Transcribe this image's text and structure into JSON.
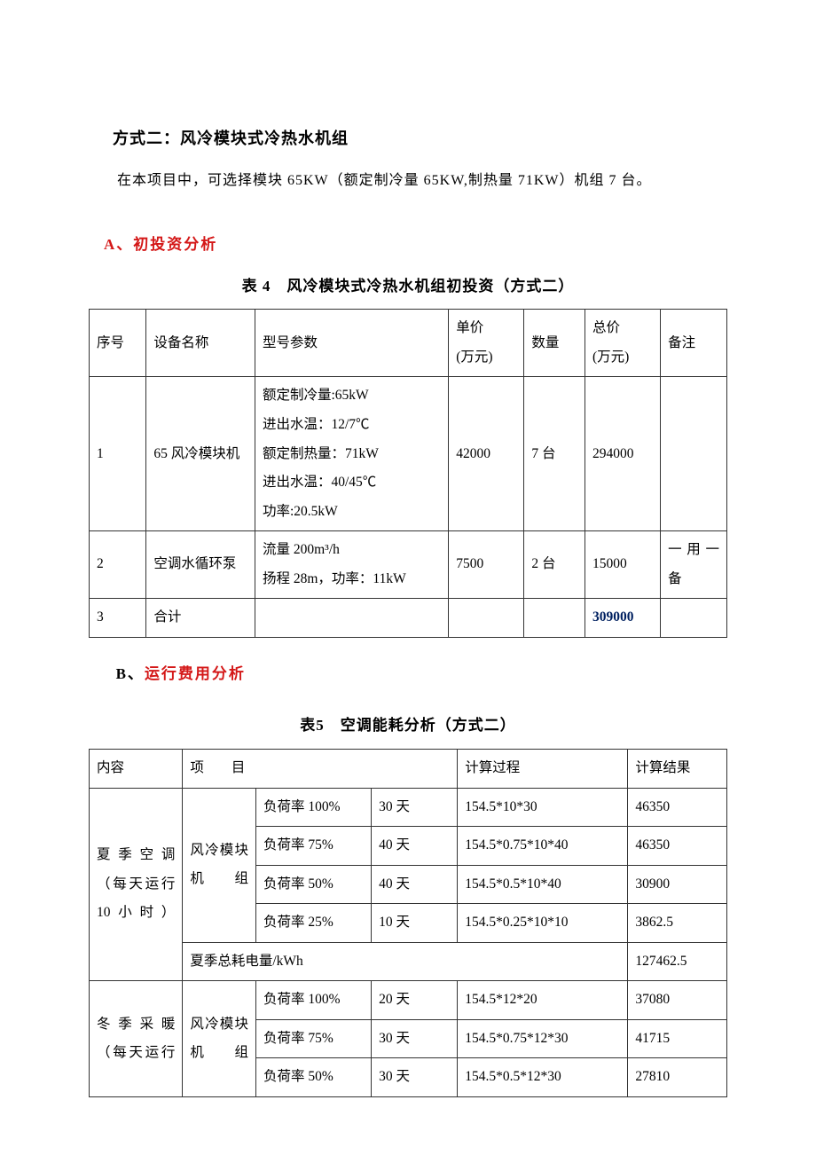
{
  "heading": "方式二：风冷模块式冷热水机组",
  "intro": "在本项目中，可选择模块 65KW（额定制冷量 65KW,制热量 71KW）机组 7 台。",
  "sectionA": {
    "letter": "A、",
    "label": "初投资分析"
  },
  "sectionB": {
    "letter": "B、",
    "label": "运行费用分析"
  },
  "table4": {
    "title": "表 4 风冷模块式冷热水机组初投资（方式二）",
    "headers": {
      "seq": "序号",
      "name": "设备名称",
      "model": "型号参数",
      "price": "单价\n(万元)",
      "qty": "数量",
      "total": "总价\n(万元)",
      "remark": "备注"
    },
    "rows": [
      {
        "seq": "1",
        "name": "65 风冷模块机",
        "model": "额定制冷量:65kW\n进出水温：12/7℃\n额定制热量：71kW\n进出水温：40/45℃\n功率:20.5kW",
        "price": "42000",
        "qty": "7 台",
        "total": "294000",
        "remark": ""
      },
      {
        "seq": "2",
        "name": "空调水循环泵",
        "model": "流量 200m³/h\n扬程 28m，功率：11kW",
        "price": "7500",
        "qty": "2 台",
        "total": "15000",
        "remark": "一用一备"
      },
      {
        "seq": "3",
        "name": "合计",
        "model": "",
        "price": "",
        "qty": "",
        "total": "309000",
        "remark": ""
      }
    ]
  },
  "table5": {
    "title": "表5 空调能耗分析（方式二）",
    "headers": {
      "content": "内容",
      "item": "项  目",
      "process": "计算过程",
      "result": "计算结果"
    },
    "summer": {
      "label": "夏季空调（每天运行 10小时）",
      "equip": "风冷模块机组",
      "rows": [
        {
          "load": "负荷率 100%",
          "days": "30 天",
          "process": "154.5*10*30",
          "result": "46350"
        },
        {
          "load": "负荷率 75%",
          "days": "40 天",
          "process": "154.5*0.75*10*40",
          "result": "46350"
        },
        {
          "load": "负荷率 50%",
          "days": "40 天",
          "process": "154.5*0.5*10*40",
          "result": "30900"
        },
        {
          "load": "负荷率 25%",
          "days": "10 天",
          "process": "154.5*0.25*10*10",
          "result": "3862.5"
        }
      ],
      "totalLabel": "夏季总耗电量/kWh",
      "totalValue": "127462.5"
    },
    "winter": {
      "label": "冬季采暖（每天运行",
      "equip": "风冷模块机组",
      "rows": [
        {
          "load": "负荷率 100%",
          "days": "20 天",
          "process": "154.5*12*20",
          "result": "37080"
        },
        {
          "load": "负荷率 75%",
          "days": "30 天",
          "process": "154.5*0.75*12*30",
          "result": "41715"
        },
        {
          "load": "负荷率 50%",
          "days": "30 天",
          "process": "154.5*0.5*12*30",
          "result": "27810"
        }
      ]
    }
  }
}
